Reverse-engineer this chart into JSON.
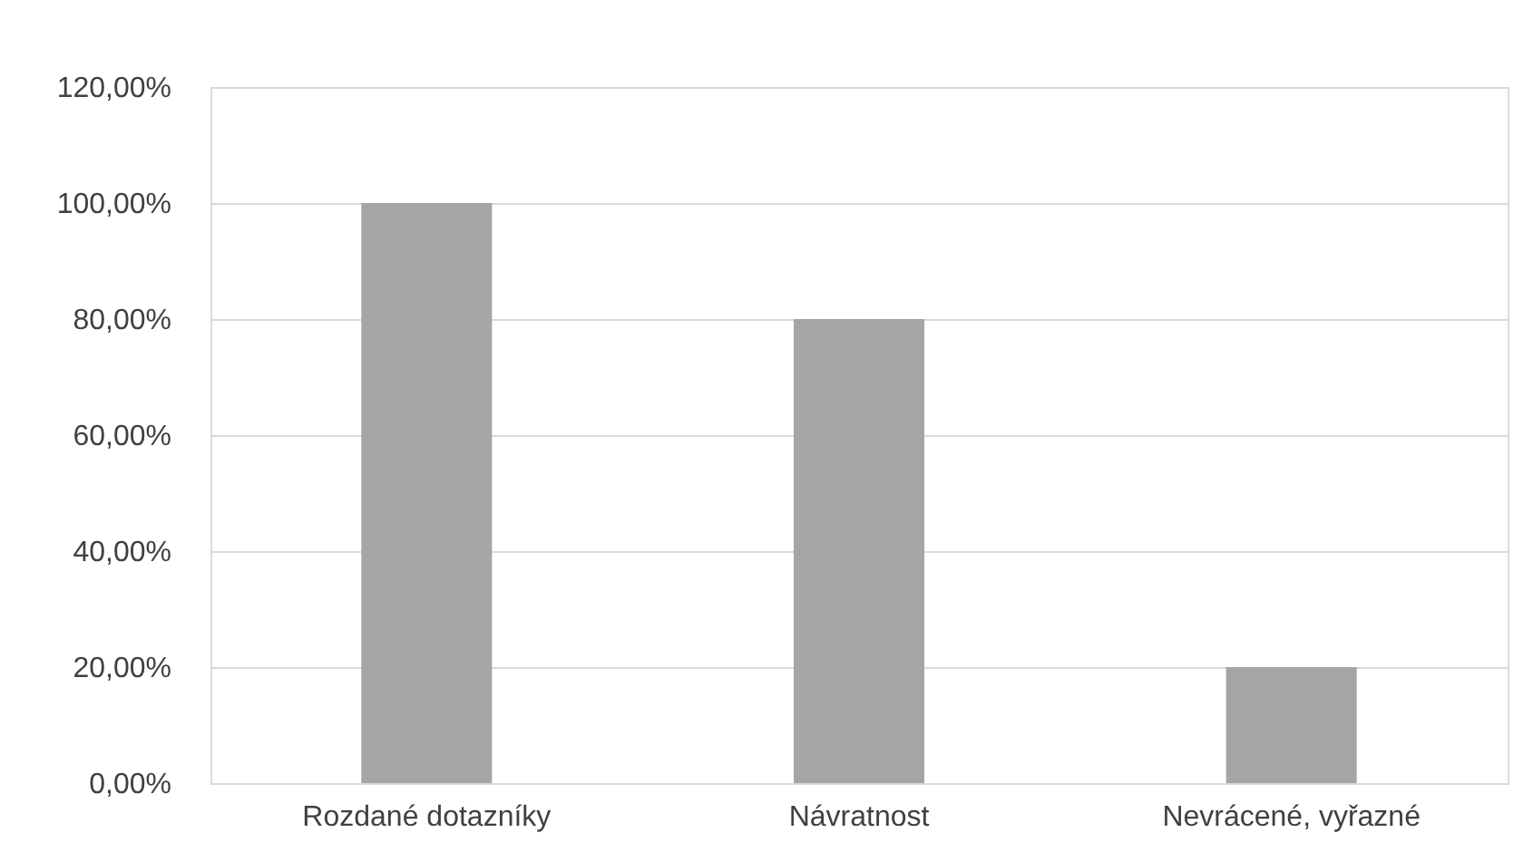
{
  "chart_data": {
    "type": "bar",
    "categories": [
      "Rozdané dotazníky",
      "Návratnost",
      "Nevrácené, vyřazné"
    ],
    "values": [
      100,
      80,
      20
    ],
    "color": "#a5a5a5",
    "ylim": [
      0,
      120
    ],
    "yticks": [
      {
        "value": 0,
        "label": "0,00%"
      },
      {
        "value": 20,
        "label": "20,00%"
      },
      {
        "value": 40,
        "label": "40,00%"
      },
      {
        "value": 60,
        "label": "60,00%"
      },
      {
        "value": 80,
        "label": "80,00%"
      },
      {
        "value": 100,
        "label": "100,00%"
      },
      {
        "value": 120,
        "label": "120,00%"
      }
    ],
    "grid": "y"
  }
}
